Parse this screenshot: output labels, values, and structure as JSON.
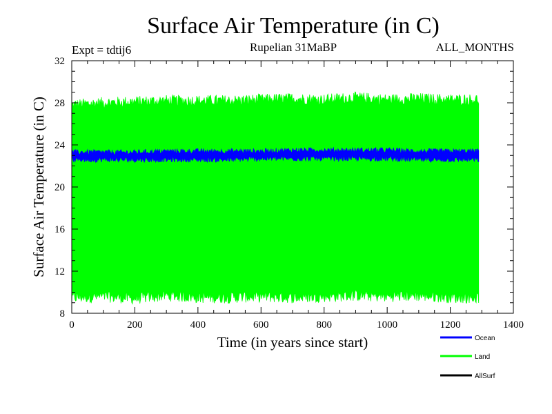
{
  "chart_data": {
    "type": "line",
    "title": "Surface Air Temperature (in C)",
    "subtitle_left": "Expt = tdtij6",
    "subtitle_center": "Rupelian  31MaBP",
    "subtitle_right": "ALL_MONTHS",
    "xlabel": "Time (in years since start)",
    "ylabel": "Surface Air Temperature (in C)",
    "xlim": [
      0,
      1400
    ],
    "ylim": [
      8,
      32
    ],
    "xticks": [
      0,
      200,
      400,
      600,
      800,
      1000,
      1200,
      1400
    ],
    "yticks": [
      8,
      12,
      16,
      20,
      24,
      28,
      32
    ],
    "x_range_of_data": [
      0,
      1290
    ],
    "series": [
      {
        "name": "Land",
        "color": "#00ff00",
        "band_min": [
          9.5,
          9.6,
          9.4,
          9.7,
          9.5,
          9.5,
          9.6,
          9.5,
          9.6,
          9.7,
          9.6,
          9.7,
          9.5
        ],
        "band_max": [
          27.8,
          28.0,
          28.1,
          28.2,
          28.2,
          28.2,
          28.3,
          28.4,
          28.3,
          28.5,
          28.3,
          28.4,
          28.3
        ],
        "x_at": [
          0,
          100,
          200,
          300,
          400,
          500,
          600,
          700,
          800,
          900,
          1000,
          1100,
          1200
        ]
      },
      {
        "name": "Ocean",
        "color": "#0000ff",
        "band_min": [
          22.6,
          22.6,
          22.6,
          22.6,
          22.6,
          22.6,
          22.7,
          22.7,
          22.7,
          22.7,
          22.7,
          22.6,
          22.6
        ],
        "band_max": [
          23.3,
          23.3,
          23.3,
          23.4,
          23.4,
          23.4,
          23.4,
          23.5,
          23.5,
          23.5,
          23.5,
          23.4,
          23.4
        ],
        "x_at": [
          0,
          100,
          200,
          300,
          400,
          500,
          600,
          700,
          800,
          900,
          1000,
          1100,
          1200
        ]
      },
      {
        "name": "AllSurf",
        "color": "#000000",
        "band_min": [],
        "band_max": [],
        "x_at": []
      }
    ],
    "legend": [
      "Ocean",
      "Land",
      "AllSurf"
    ]
  }
}
